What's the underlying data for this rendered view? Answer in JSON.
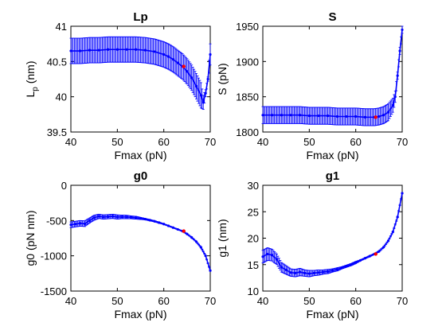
{
  "colors": {
    "series": "#0000ff",
    "highlight": "#ff0000",
    "axes": "#000000"
  },
  "chart_data": [
    {
      "type": "line",
      "title": "Lp",
      "xlabel": "Fmax (pN)",
      "ylabel_main": "L",
      "ylabel_sub": "p",
      "ylabel_unit": " (nm)",
      "xlim": [
        40,
        70
      ],
      "ylim": [
        39.5,
        41
      ],
      "xticks": [
        "40",
        "50",
        "60",
        "70"
      ],
      "yticks": [
        "39.5",
        "40",
        "40.5",
        "41"
      ],
      "series": [
        {
          "x": [
            40,
            42,
            44,
            46,
            48,
            50,
            52,
            54,
            56,
            58,
            60,
            61,
            62,
            63,
            64,
            65,
            66,
            67,
            68,
            68.5,
            69,
            69.5,
            70
          ],
          "y": [
            40.65,
            40.65,
            40.66,
            40.66,
            40.67,
            40.67,
            40.67,
            40.67,
            40.66,
            40.64,
            40.6,
            40.57,
            40.53,
            40.48,
            40.43,
            40.36,
            40.27,
            40.15,
            40.02,
            39.92,
            40.05,
            40.25,
            40.6
          ],
          "err": [
            0.18,
            0.18,
            0.18,
            0.18,
            0.18,
            0.18,
            0.18,
            0.18,
            0.18,
            0.18,
            0.18,
            0.18,
            0.18,
            0.18,
            0.18,
            0.18,
            0.18,
            0.18,
            0.18,
            0.1,
            0.05,
            0.03,
            0.15
          ]
        }
      ],
      "highlight": {
        "x": 64.3,
        "y": 40.43
      }
    },
    {
      "type": "line",
      "title": "S",
      "xlabel": "Fmax (pN)",
      "ylabel": "S (pN)",
      "xlim": [
        40,
        70
      ],
      "ylim": [
        1800,
        1950
      ],
      "xticks": [
        "40",
        "50",
        "60",
        "70"
      ],
      "yticks": [
        "1800",
        "1850",
        "1900",
        "1950"
      ],
      "series": [
        {
          "x": [
            40,
            42,
            44,
            46,
            48,
            50,
            52,
            54,
            56,
            58,
            60,
            62,
            64,
            65,
            66,
            67,
            68,
            68.5,
            69,
            69.5,
            70
          ],
          "y": [
            1824,
            1824,
            1824,
            1824,
            1824,
            1823,
            1823,
            1823,
            1822,
            1822,
            1822,
            1821,
            1821,
            1822,
            1824,
            1828,
            1838,
            1850,
            1880,
            1915,
            1945
          ],
          "err": [
            12,
            12,
            12,
            12,
            12,
            12,
            12,
            12,
            12,
            12,
            12,
            12,
            12,
            12,
            12,
            12,
            10,
            8,
            5,
            5,
            5
          ]
        }
      ],
      "highlight": {
        "x": 64.3,
        "y": 1821
      }
    },
    {
      "type": "line",
      "title": "g0",
      "xlabel": "Fmax (pN)",
      "ylabel": "g0 (pN nm)",
      "xlim": [
        40,
        70
      ],
      "ylim": [
        -1500,
        0
      ],
      "xticks": [
        "40",
        "50",
        "60",
        "70"
      ],
      "yticks": [
        "-1500",
        "-1000",
        "-500",
        "0"
      ],
      "series": [
        {
          "x": [
            40,
            41,
            42,
            43,
            44,
            45,
            46,
            47,
            48,
            49,
            50,
            51,
            52,
            53,
            54,
            55,
            56,
            57,
            58,
            59,
            60,
            61,
            62,
            63,
            64,
            65,
            66,
            67,
            68,
            69,
            70
          ],
          "y": [
            -560,
            -550,
            -540,
            -545,
            -500,
            -460,
            -440,
            -450,
            -445,
            -440,
            -450,
            -448,
            -450,
            -455,
            -460,
            -470,
            -480,
            -495,
            -510,
            -530,
            -550,
            -575,
            -600,
            -625,
            -650,
            -690,
            -740,
            -800,
            -880,
            -1000,
            -1210
          ],
          "err": [
            40,
            40,
            40,
            40,
            35,
            35,
            30,
            30,
            30,
            30,
            30,
            25,
            25,
            20,
            20,
            15,
            10,
            10,
            8,
            8,
            5,
            5,
            5,
            5,
            5,
            5,
            5,
            5,
            5,
            5,
            5
          ]
        }
      ],
      "highlight": {
        "x": 64.3,
        "y": -650
      }
    },
    {
      "type": "line",
      "title": "g1",
      "xlabel": "Fmax (pN)",
      "ylabel": "g1 (nm)",
      "xlim": [
        40,
        70
      ],
      "ylim": [
        10,
        30
      ],
      "xticks": [
        "40",
        "50",
        "60",
        "70"
      ],
      "yticks": [
        "10",
        "15",
        "20",
        "25",
        "30"
      ],
      "series": [
        {
          "x": [
            40,
            41,
            42,
            43,
            44,
            45,
            46,
            47,
            48,
            49,
            50,
            51,
            52,
            53,
            54,
            55,
            56,
            57,
            58,
            59,
            60,
            61,
            62,
            63,
            64,
            65,
            66,
            67,
            68,
            69,
            70
          ],
          "y": [
            16.5,
            17,
            16.8,
            16,
            14.5,
            14,
            13.5,
            13.4,
            13.6,
            13.4,
            13.3,
            13.4,
            13.5,
            13.6,
            13.7,
            13.9,
            14.1,
            14.4,
            14.7,
            15,
            15.4,
            15.8,
            16.2,
            16.6,
            17,
            17.5,
            18.3,
            19.5,
            21.2,
            24,
            28.5
          ],
          "err": [
            1.2,
            1.2,
            1.1,
            1.0,
            0.9,
            0.8,
            0.7,
            0.7,
            0.7,
            0.6,
            0.6,
            0.5,
            0.5,
            0.4,
            0.4,
            0.3,
            0.3,
            0.2,
            0.2,
            0.2,
            0.2,
            0.1,
            0.1,
            0.1,
            0.1,
            0.1,
            0.1,
            0.1,
            0.1,
            0.1,
            0.1
          ]
        }
      ],
      "highlight": {
        "x": 64.3,
        "y": 17
      }
    }
  ]
}
